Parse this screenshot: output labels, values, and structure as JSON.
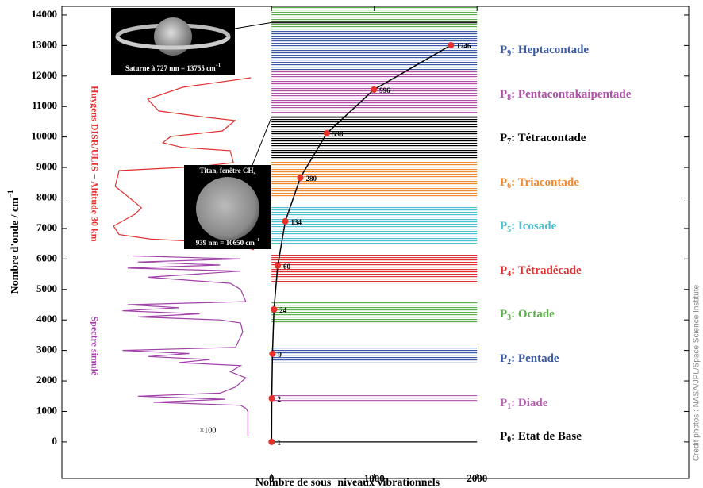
{
  "chart_data": {
    "type": "polyad",
    "x_label": "Nombre de sous−niveaux vibrationnels",
    "y_label": "Nombre d'onde / cm",
    "y_label_sup": "−1",
    "xlim": [
      -2040,
      4060
    ],
    "ylim": [
      -1200,
      14285
    ],
    "xticks": [
      0,
      1000,
      2000
    ],
    "yticks": [
      0,
      1000,
      2000,
      3000,
      4000,
      5000,
      6000,
      7000,
      8000,
      9000,
      10000,
      11000,
      12000,
      13000,
      14000
    ],
    "band_x": [
      0,
      2000
    ],
    "curve_color": "#000000",
    "point_color": "#e8302a",
    "polyads": [
      {
        "symbol": "P",
        "index": "0",
        "name": ": Etat de Base",
        "color": "#000000",
        "count": 1,
        "wavenumber": 0,
        "band": [
          0,
          0
        ]
      },
      {
        "symbol": "P",
        "index": "1",
        "name": ": Diade",
        "color": "#b55fb0",
        "count": 2,
        "wavenumber": 1430,
        "band": [
          1300,
          1540
        ]
      },
      {
        "symbol": "P",
        "index": "2",
        "name": ": Pentade",
        "color": "#3c5aa8",
        "count": 9,
        "wavenumber": 2890,
        "band": [
          2620,
          3100
        ]
      },
      {
        "symbol": "P",
        "index": "3",
        "name": ": Octade",
        "color": "#5cb04a",
        "count": 24,
        "wavenumber": 4345,
        "band": [
          3900,
          4600
        ]
      },
      {
        "symbol": "P",
        "index": "4",
        "name": ": Tétradécade",
        "color": "#e03030",
        "count": 60,
        "wavenumber": 5777,
        "band": [
          5200,
          6150
        ]
      },
      {
        "symbol": "P",
        "index": "5",
        "name": ": Icosade",
        "color": "#4bc0d0",
        "count": 134,
        "wavenumber": 7234,
        "band": [
          6500,
          7700
        ]
      },
      {
        "symbol": "P",
        "index": "6",
        "name": ": Triacontade",
        "color": "#f08a30",
        "count": 280,
        "wavenumber": 8665,
        "band": [
          8000,
          9200
        ]
      },
      {
        "symbol": "P",
        "index": "7",
        "name": ": Tétracontade",
        "color": "#000000",
        "count": 538,
        "wavenumber": 10122,
        "band": [
          9300,
          10700
        ]
      },
      {
        "symbol": "P",
        "index": "8",
        "name": ": Pentacontakaipentade",
        "color": "#b050a8",
        "count": 996,
        "wavenumber": 11553,
        "band": [
          10800,
          12200
        ]
      },
      {
        "symbol": "P",
        "index": "9",
        "name": ": Heptacontade",
        "color": "#3c5aa8",
        "count": 1746,
        "wavenumber": 13010,
        "band": [
          12200,
          13500
        ]
      },
      {
        "color": "#5cb04a",
        "band": [
          13500,
          14285
        ]
      }
    ],
    "spectra": [
      {
        "name": "Huygens DISR/ULIS − Altitude 30 km",
        "color": "#e03030",
        "x": [
          -201,
          -865,
          -1205,
          -1097,
          -633,
          -355,
          -479,
          -981,
          -1058,
          -865,
          -402,
          -371,
          -710,
          -1483,
          -1521,
          -1328,
          -1266,
          -1328,
          -1537,
          -1483,
          -1174,
          -556,
          -324,
          -170
        ],
        "y": [
          11944,
          11631,
          11241,
          10851,
          10643,
          10539,
          10200,
          10018,
          9810,
          9654,
          9550,
          9159,
          9029,
          8899,
          8379,
          7858,
          7676,
          7468,
          7078,
          6800,
          6650,
          6550,
          6450,
          6300
        ]
      },
      {
        "name": "Spectre simulé",
        "color": "#a040a8",
        "x": [
          -1350,
          -300,
          -1300,
          -500,
          -1400,
          -300,
          -1200,
          -400,
          -300,
          -250,
          -1400,
          -900,
          -1450,
          -700,
          -1300,
          -500,
          -300,
          -280,
          -350,
          -1450,
          -800,
          -1200,
          -600,
          -900,
          -300,
          -400,
          -250,
          -350,
          -500,
          -1300,
          -450,
          -1150,
          -300,
          -250,
          -230,
          -230
        ],
        "y": [
          6100,
          6000,
          5900,
          5800,
          5700,
          5600,
          5400,
          5200,
          5000,
          4600,
          4500,
          4400,
          4300,
          4200,
          4100,
          4000,
          3900,
          3600,
          3100,
          3000,
          2900,
          2800,
          2700,
          2600,
          2500,
          2300,
          2100,
          1800,
          1600,
          1500,
          1400,
          1300,
          1200,
          1100,
          1000,
          200
        ]
      }
    ],
    "scale_note": "×100",
    "saturn": {
      "caption": "Saturne à 727 nm = 13755 cm",
      "sup": "−1",
      "wavenumber": 13755
    },
    "titan": {
      "caption_top": "Titan, fenêtre CH",
      "sub": "4",
      "caption": "939 nm = 10650 cm",
      "sup": "−1",
      "wavenumber": 10650
    },
    "credit": "Crédit photos : NASA/JPL/Space Science Institute"
  }
}
